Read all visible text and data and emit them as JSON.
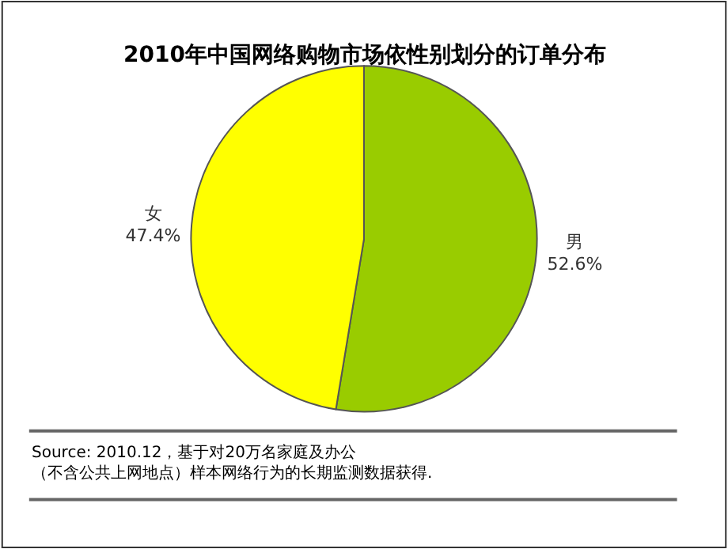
{
  "chart_data": {
    "type": "pie",
    "title": "2010年中国网络购物市场依性别划分的订单分布",
    "categories": [
      "男",
      "女"
    ],
    "values": [
      52.6,
      47.4
    ],
    "value_labels": [
      "52.6%",
      "47.4%"
    ],
    "colors": [
      "#99cc00",
      "#ffff00"
    ],
    "legend": false,
    "annotations": [
      "Source: 2010.12，基于对20万名家庭及办公（不含公共上网地点）样本网络行为的长期监测数据获得."
    ]
  }
}
